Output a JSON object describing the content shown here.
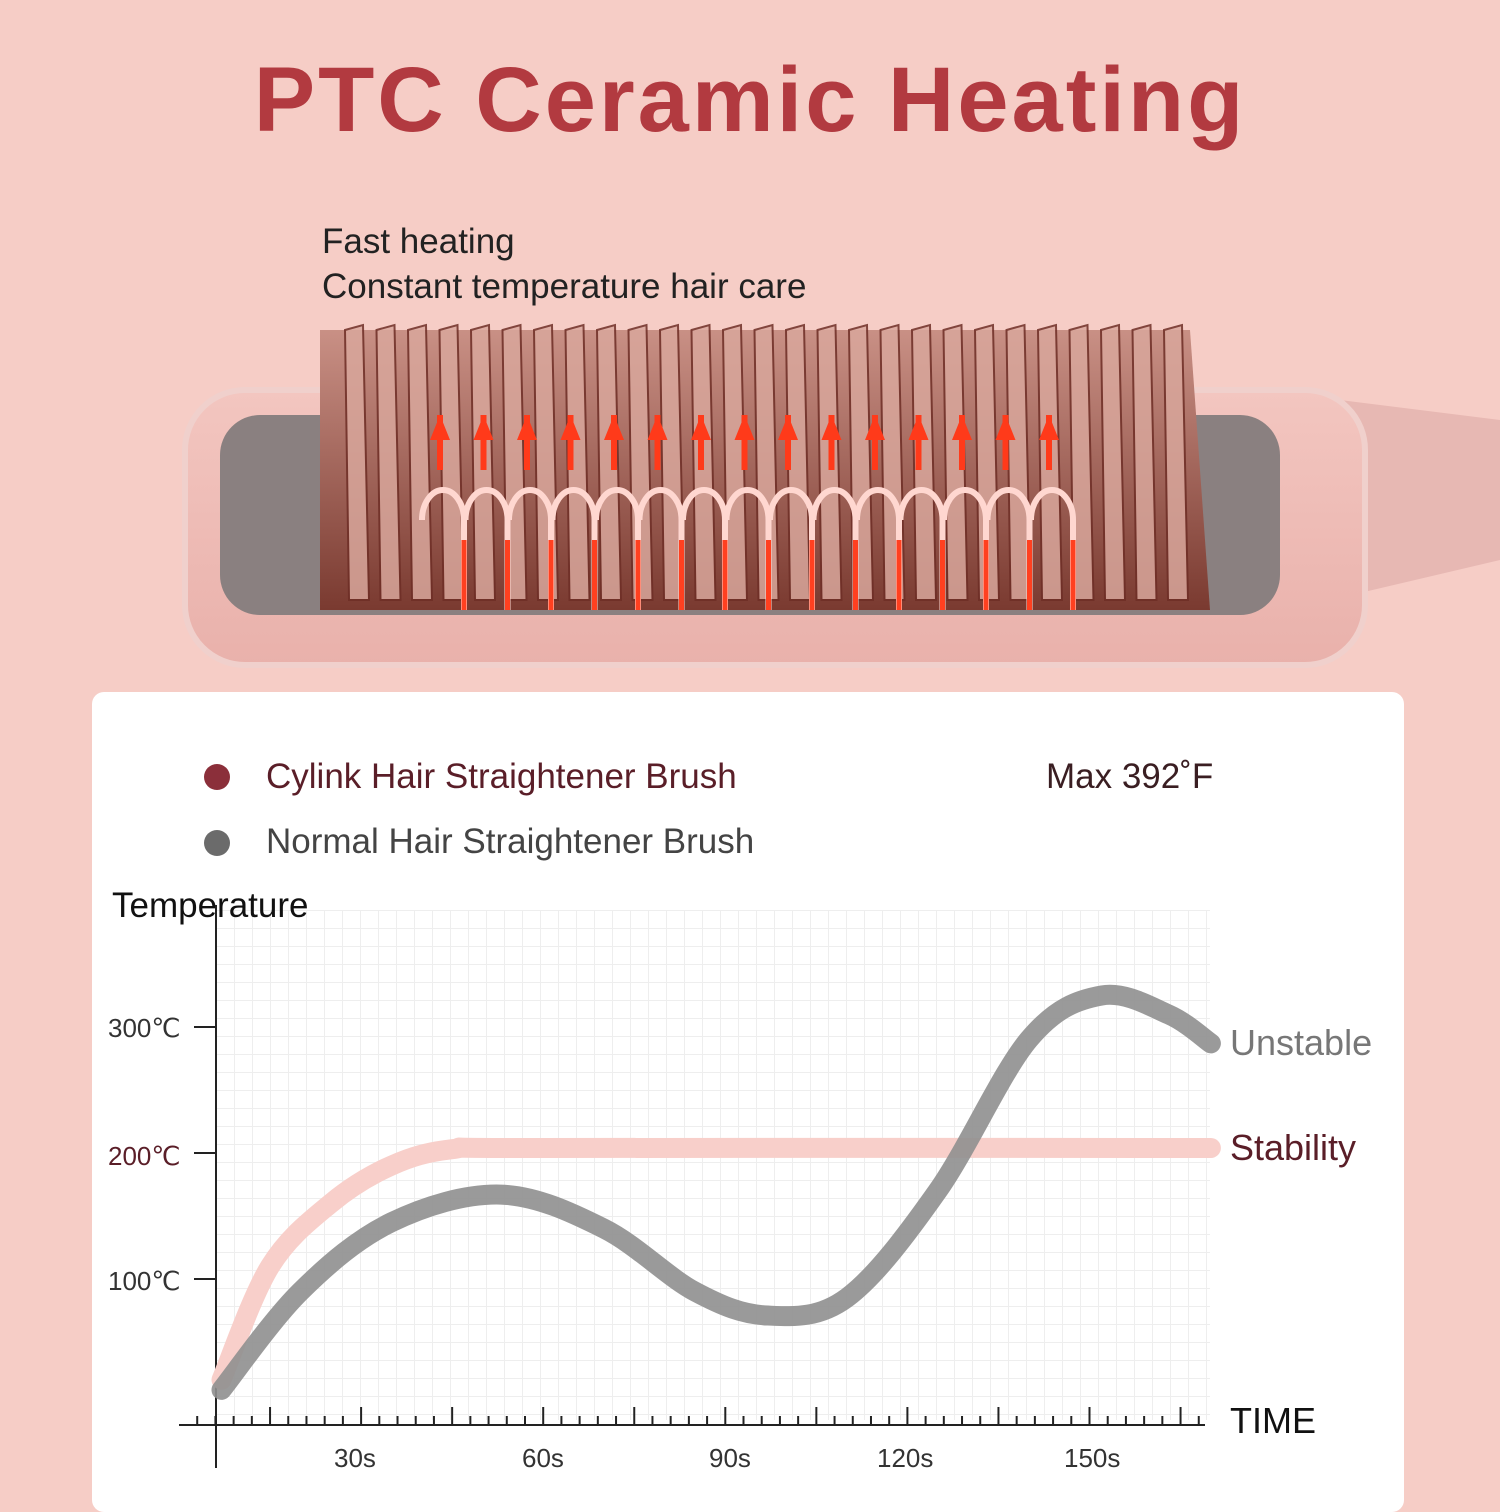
{
  "title": "PTC Ceramic Heating",
  "features": [
    "Fast heating",
    "Constant temperature hair care"
  ],
  "colors": {
    "title": "#b23a40",
    "cylink": "#8b2f3a",
    "cylink_line": "#f8cfca",
    "normal": "#6b6b6b",
    "normal_line": "#8f8f8f"
  },
  "legend": {
    "cylink": "Cylink Hair Straightener Brush",
    "normal": "Normal Hair Straightener Brush",
    "max": "Max 392˚F"
  },
  "chart_data": {
    "type": "line",
    "ylabel": "Temperature",
    "xlabel": "TIME",
    "x_ticks": [
      "30s",
      "60s",
      "90s",
      "120s",
      "150s"
    ],
    "y_ticks": [
      "100℃",
      "200℃",
      "300℃"
    ],
    "xlim": [
      0,
      170
    ],
    "ylim": [
      0,
      350
    ],
    "grid": true,
    "legend_position": "top-left",
    "series": [
      {
        "name": "Cylink Hair Straightener Brush",
        "end_label": "Stability",
        "x": [
          7,
          15,
          25,
          35,
          45,
          60,
          170
        ],
        "y": [
          20,
          110,
          160,
          190,
          203,
          204,
          204
        ]
      },
      {
        "name": "Normal Hair Straightener Brush",
        "end_label": "Unstable",
        "x": [
          7,
          20,
          35,
          53,
          70,
          85,
          97,
          110,
          125,
          140,
          152,
          163,
          170
        ],
        "y": [
          12,
          90,
          145,
          167,
          140,
          90,
          71,
          85,
          170,
          290,
          325,
          310,
          287
        ]
      }
    ]
  }
}
